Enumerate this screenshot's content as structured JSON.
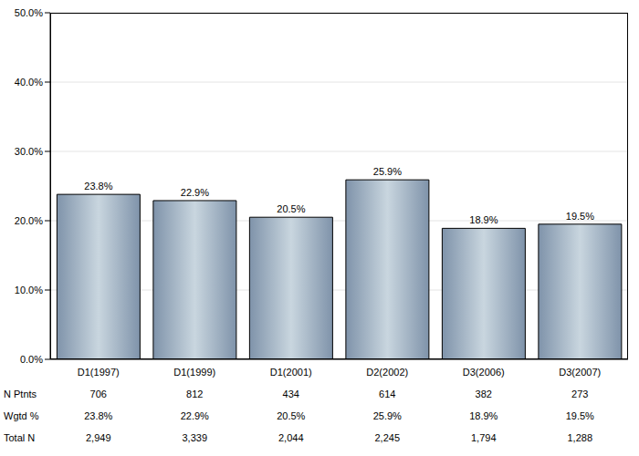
{
  "chart_data": {
    "type": "bar",
    "categories": [
      "D1(1997)",
      "D1(1999)",
      "D1(2001)",
      "D2(2002)",
      "D3(2006)",
      "D3(2007)"
    ],
    "values": [
      23.8,
      22.9,
      20.5,
      25.9,
      18.9,
      19.5
    ],
    "value_labels": [
      "23.8%",
      "22.9%",
      "20.5%",
      "25.9%",
      "18.9%",
      "19.5%"
    ],
    "data_labels": true,
    "color": "#7f93aa",
    "ylim": [
      0,
      50
    ],
    "yticks": [
      {
        "value": 0,
        "label": "0.0%"
      },
      {
        "value": 10,
        "label": "10.0%"
      },
      {
        "value": 20,
        "label": "20.0%"
      },
      {
        "value": 30,
        "label": "30.0%"
      },
      {
        "value": 40,
        "label": "40.0%"
      },
      {
        "value": 50,
        "label": "50.0%"
      }
    ],
    "grid": true,
    "table": [
      {
        "label": "N Ptnts",
        "cells": [
          "706",
          "812",
          "434",
          "614",
          "382",
          "273"
        ]
      },
      {
        "label": "Wgtd %",
        "cells": [
          "23.8%",
          "22.9%",
          "20.5%",
          "25.9%",
          "18.9%",
          "19.5%"
        ]
      },
      {
        "label": "Total N",
        "cells": [
          "2,949",
          "3,339",
          "2,044",
          "2,245",
          "1,794",
          "1,288"
        ]
      }
    ]
  }
}
